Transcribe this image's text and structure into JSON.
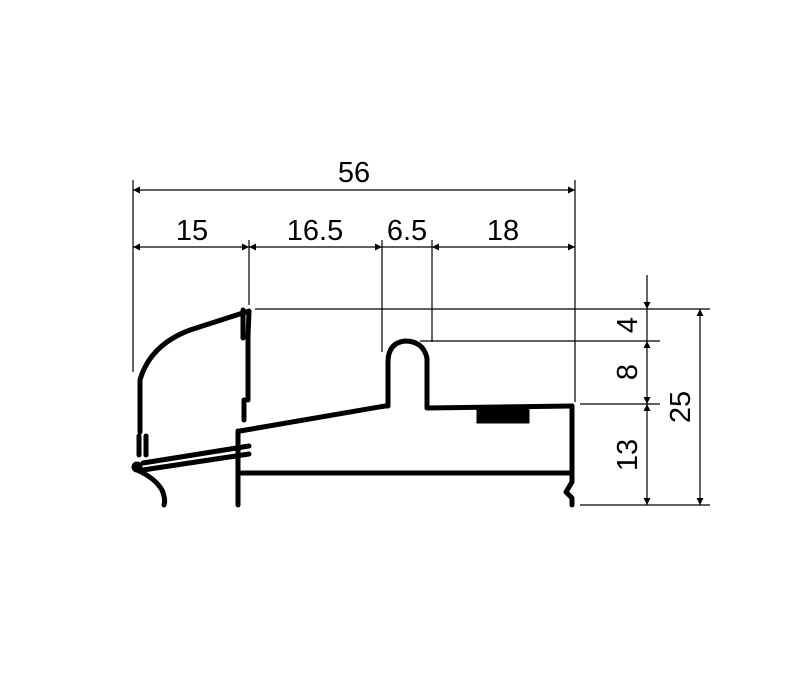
{
  "drawing": {
    "overall_width": "56",
    "segments": [
      "15",
      "16.5",
      "6.5",
      "18"
    ],
    "vertical_right": [
      "4",
      "8",
      "13"
    ],
    "overall_height": "25"
  }
}
